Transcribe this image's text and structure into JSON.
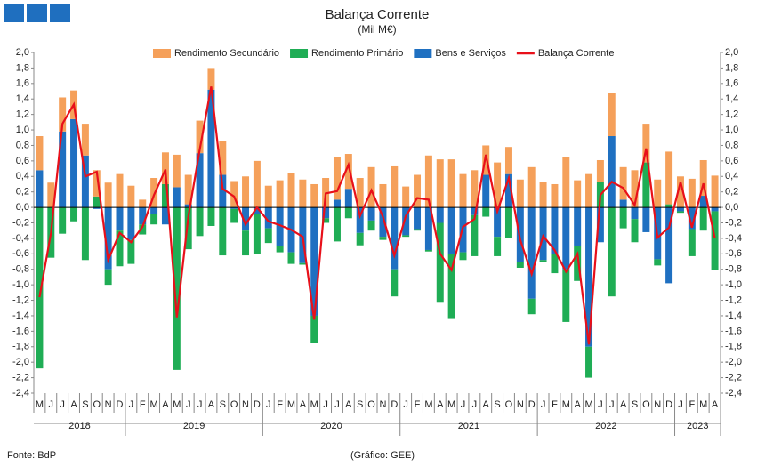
{
  "chart_data": {
    "type": "bar",
    "title": "Balança Corrente",
    "subtitle": "(Mil M€)",
    "source": "Fonte: BdP",
    "credit": "(Gráfico: GEE)",
    "categories": [
      "M",
      "J",
      "J",
      "A",
      "S",
      "O",
      "N",
      "D",
      "J",
      "F",
      "M",
      "A",
      "M",
      "J",
      "J",
      "A",
      "S",
      "O",
      "N",
      "D",
      "J",
      "F",
      "M",
      "A",
      "M",
      "J",
      "J",
      "A",
      "S",
      "O",
      "N",
      "D",
      "J",
      "F",
      "M",
      "A",
      "M",
      "J",
      "J",
      "A",
      "S",
      "O",
      "N",
      "D",
      "J",
      "F",
      "M",
      "A",
      "M",
      "J",
      "J",
      "A",
      "S",
      "O",
      "N",
      "D",
      "J",
      "F",
      "M",
      "A"
    ],
    "years": [
      "2018",
      "2019",
      "2020",
      "2021",
      "2022",
      "2023"
    ],
    "series": [
      {
        "name": "Rendimento Secundário",
        "color": "#f5a05a",
        "stack": true,
        "values": [
          0.44,
          0.32,
          0.44,
          0.37,
          0.41,
          0.34,
          0.32,
          0.43,
          0.28,
          0.1,
          0.38,
          0.41,
          0.42,
          0.38,
          0.42,
          0.28,
          0.44,
          0.34,
          0.4,
          0.6,
          0.28,
          0.35,
          0.44,
          0.36,
          0.3,
          0.38,
          0.55,
          0.45,
          0.38,
          0.52,
          0.3,
          0.53,
          0.27,
          0.42,
          0.67,
          0.62,
          0.62,
          0.43,
          0.48,
          0.38,
          0.58,
          0.35,
          0.36,
          0.52,
          0.33,
          0.3,
          0.65,
          0.35,
          0.43,
          0.28,
          0.56,
          0.42,
          0.48,
          0.5,
          0.36,
          0.68,
          0.4,
          0.37,
          0.46,
          0.41
        ]
      },
      {
        "name": "Rendimento Primário",
        "color": "#1fad55",
        "stack": true,
        "values": [
          -2.08,
          -0.65,
          -0.34,
          -0.18,
          -0.68,
          0.14,
          -0.2,
          -0.46,
          -0.31,
          -0.13,
          -0.14,
          0.3,
          -2.1,
          -0.54,
          -0.37,
          -0.24,
          -0.62,
          -0.18,
          -0.32,
          -0.52,
          -0.19,
          -0.08,
          -0.15,
          -0.02,
          -0.35,
          -0.06,
          -0.44,
          -0.14,
          -0.16,
          -0.13,
          -0.04,
          -0.35,
          -0.02,
          -0.02,
          -0.02,
          -1.02,
          -0.83,
          -0.1,
          -0.53,
          -0.12,
          -0.25,
          -0.4,
          -0.08,
          -0.2,
          -0.02,
          -0.25,
          -0.68,
          -0.45,
          -0.4,
          0.33,
          -1.15,
          -0.27,
          -0.3,
          0.58,
          -0.08,
          0.04,
          -0.02,
          -0.35,
          -0.3,
          -0.76
        ]
      },
      {
        "name": "Bens e Serviços",
        "color": "#1f70c1",
        "stack": true,
        "values": [
          0.48,
          0,
          0.98,
          1.14,
          0.67,
          -0.02,
          -0.8,
          -0.3,
          -0.42,
          -0.22,
          -0.08,
          -0.22,
          0.26,
          0.04,
          0.7,
          1.52,
          0.42,
          -0.02,
          -0.3,
          -0.08,
          -0.27,
          -0.5,
          -0.58,
          -0.72,
          -1.4,
          -0.14,
          0.1,
          0.24,
          -0.33,
          -0.17,
          -0.38,
          -0.8,
          -0.36,
          -0.28,
          -0.55,
          -0.2,
          -0.6,
          -0.58,
          -0.1,
          0.42,
          -0.38,
          0.43,
          -0.7,
          -1.18,
          -0.68,
          -0.6,
          -0.8,
          -0.5,
          -1.8,
          -0.45,
          0.92,
          0.1,
          -0.15,
          -0.32,
          -0.67,
          -0.98,
          -0.05,
          -0.28,
          0.15,
          -0.05
        ]
      },
      {
        "name": "Balança Corrente",
        "color": "#e8101a",
        "type": "line",
        "values": [
          -1.16,
          -0.33,
          1.08,
          1.33,
          0.4,
          0.46,
          -0.68,
          -0.33,
          -0.45,
          -0.25,
          0.16,
          0.49,
          -1.42,
          -0.12,
          0.75,
          1.56,
          0.24,
          0.14,
          -0.22,
          0.0,
          -0.18,
          -0.23,
          -0.29,
          -0.38,
          -1.45,
          0.18,
          0.21,
          0.55,
          -0.11,
          0.22,
          -0.12,
          -0.62,
          -0.11,
          0.12,
          0.1,
          -0.6,
          -0.81,
          -0.25,
          -0.15,
          0.68,
          -0.05,
          0.38,
          -0.42,
          -0.86,
          -0.37,
          -0.55,
          -0.83,
          -0.6,
          -1.77,
          0.16,
          0.33,
          0.25,
          0.03,
          0.76,
          -0.39,
          -0.26,
          0.33,
          -0.26,
          0.31,
          -0.4
        ]
      }
    ],
    "ylim": [
      -2.4,
      2.0
    ],
    "yticks": [
      {
        "value": 2.0,
        "label": "2,0"
      },
      {
        "value": 1.8,
        "label": "1,8"
      },
      {
        "value": 1.6,
        "label": "1,6"
      },
      {
        "value": 1.4,
        "label": "1,4"
      },
      {
        "value": 1.2,
        "label": "1,2"
      },
      {
        "value": 1.0,
        "label": "1,0"
      },
      {
        "value": 0.8,
        "label": "0,8"
      },
      {
        "value": 0.6,
        "label": "0,6"
      },
      {
        "value": 0.4,
        "label": "0,4"
      },
      {
        "value": 0.2,
        "label": "0,2"
      },
      {
        "value": 0,
        "label": "0,0"
      },
      {
        "value": -0.2,
        "label": "-0,2"
      },
      {
        "value": -0.4,
        "label": "-0,4"
      },
      {
        "value": -0.6,
        "label": "-0,6"
      },
      {
        "value": -0.8,
        "label": "-0,8"
      },
      {
        "value": -1.0,
        "label": "-1,0"
      },
      {
        "value": -1.2,
        "label": "-1,2"
      },
      {
        "value": -1.4,
        "label": "-1,4"
      },
      {
        "value": -1.6,
        "label": "-1,6"
      },
      {
        "value": -1.8,
        "label": "-1,8"
      },
      {
        "value": -2.0,
        "label": "-2,0"
      },
      {
        "value": -2.2,
        "label": "-2,2"
      },
      {
        "value": -2.4,
        "label": "-2,4"
      }
    ],
    "grid": false,
    "legend": "top"
  }
}
